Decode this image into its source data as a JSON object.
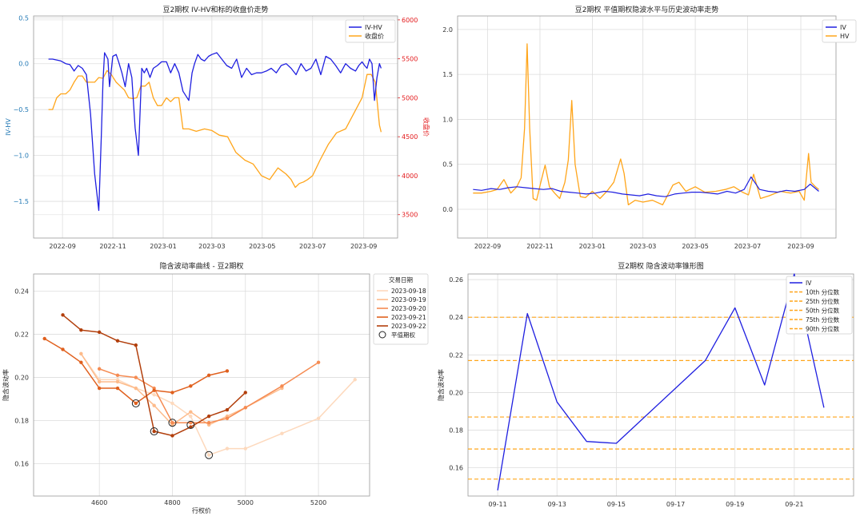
{
  "chart_data": [
    {
      "id": "p1",
      "type": "line",
      "title": "豆2期权 IV-HV和标的收盘价走势",
      "ylabel": "IV-HV",
      "y2label": "收盘价",
      "ylim": [
        -1.9,
        0.52
      ],
      "y2lim": [
        3200,
        6050
      ],
      "x_ticks": [
        "2022-09",
        "2022-11",
        "2023-01",
        "2023-03",
        "2023-05",
        "2023-07",
        "2023-09"
      ],
      "y_ticks": [
        0.5,
        0.0,
        -0.5,
        -1.0,
        -1.5
      ],
      "y_tick_labels": [
        "0.5",
        "0.0",
        "−0.5",
        "−1.0",
        "−1.5"
      ],
      "y2_ticks": [
        6000,
        5500,
        5000,
        4500,
        4000,
        3500
      ],
      "colors": {
        "iv_hv": "#1f1fe0",
        "close": "#ffa51a",
        "left_axis": "#1f77b4",
        "right_axis": "#e31a1c"
      },
      "legend": [
        "IV-HV",
        "收盘价"
      ],
      "legend_position": "top-right",
      "series": [
        {
          "name": "IV-HV",
          "axis": "left",
          "color": "#1f1fe0",
          "x": [
            "2022-08-15",
            "2022-08-20",
            "2022-08-25",
            "2022-08-30",
            "2022-09-05",
            "2022-09-10",
            "2022-09-15",
            "2022-09-20",
            "2022-09-25",
            "2022-09-30",
            "2022-10-05",
            "2022-10-10",
            "2022-10-15",
            "2022-10-18",
            "2022-10-20",
            "2022-10-22",
            "2022-10-26",
            "2022-10-28",
            "2022-11-01",
            "2022-11-05",
            "2022-11-08",
            "2022-11-12",
            "2022-11-16",
            "2022-11-20",
            "2022-11-24",
            "2022-11-28",
            "2022-12-02",
            "2022-12-06",
            "2022-12-09",
            "2022-12-12",
            "2022-12-16",
            "2022-12-20",
            "2022-12-25",
            "2022-12-30",
            "2023-01-05",
            "2023-01-10",
            "2023-01-15",
            "2023-01-20",
            "2023-01-25",
            "2023-02-01",
            "2023-02-05",
            "2023-02-08",
            "2023-02-12",
            "2023-02-16",
            "2023-02-20",
            "2023-02-25",
            "2023-03-01",
            "2023-03-07",
            "2023-03-13",
            "2023-03-19",
            "2023-03-25",
            "2023-03-31",
            "2023-04-06",
            "2023-04-12",
            "2023-04-18",
            "2023-04-24",
            "2023-04-30",
            "2023-05-06",
            "2023-05-12",
            "2023-05-18",
            "2023-05-24",
            "2023-05-30",
            "2023-06-05",
            "2023-06-11",
            "2023-06-17",
            "2023-06-23",
            "2023-06-29",
            "2023-07-05",
            "2023-07-11",
            "2023-07-17",
            "2023-07-23",
            "2023-07-29",
            "2023-08-04",
            "2023-08-10",
            "2023-08-16",
            "2023-08-22",
            "2023-08-26",
            "2023-08-30",
            "2023-09-02",
            "2023-09-05",
            "2023-09-08",
            "2023-09-11",
            "2023-09-14",
            "2023-09-17",
            "2023-09-20",
            "2023-09-22"
          ],
          "y": [
            0.05,
            0.05,
            0.04,
            0.03,
            0.0,
            -0.01,
            -0.08,
            -0.02,
            -0.05,
            -0.12,
            -0.55,
            -1.2,
            -1.6,
            -0.8,
            -0.2,
            0.12,
            0.05,
            -0.25,
            0.08,
            0.1,
            0.02,
            -0.1,
            -0.25,
            0.0,
            -0.15,
            -0.7,
            -1.0,
            -0.05,
            -0.1,
            -0.05,
            -0.15,
            -0.05,
            -0.02,
            0.02,
            0.02,
            -0.1,
            0.0,
            -0.1,
            -0.3,
            -0.4,
            -0.1,
            0.0,
            0.1,
            0.05,
            0.03,
            0.08,
            0.1,
            0.12,
            0.05,
            -0.02,
            -0.05,
            0.05,
            -0.15,
            -0.05,
            -0.12,
            -0.1,
            -0.1,
            -0.08,
            -0.05,
            -0.1,
            -0.02,
            0.0,
            -0.05,
            -0.12,
            0.0,
            -0.08,
            -0.05,
            0.05,
            -0.12,
            0.08,
            0.05,
            -0.02,
            -0.1,
            0.0,
            -0.05,
            -0.08,
            -0.02,
            0.02,
            -0.02,
            -0.05,
            0.05,
            0.0,
            -0.4,
            -0.15,
            0.0,
            -0.05
          ]
        },
        {
          "name": "收盘价",
          "axis": "right",
          "color": "#ffa51a",
          "x": [
            "2022-08-15",
            "2022-08-20",
            "2022-08-25",
            "2022-08-30",
            "2022-09-05",
            "2022-09-10",
            "2022-09-15",
            "2022-09-20",
            "2022-09-25",
            "2022-09-30",
            "2022-10-05",
            "2022-10-10",
            "2022-10-15",
            "2022-10-20",
            "2022-10-25",
            "2022-10-30",
            "2022-11-05",
            "2022-11-10",
            "2022-11-15",
            "2022-11-20",
            "2022-11-25",
            "2022-11-30",
            "2022-12-05",
            "2022-12-10",
            "2022-12-15",
            "2022-12-20",
            "2022-12-25",
            "2022-12-30",
            "2023-01-05",
            "2023-01-10",
            "2023-01-15",
            "2023-01-20",
            "2023-01-25",
            "2023-02-01",
            "2023-02-10",
            "2023-02-20",
            "2023-03-01",
            "2023-03-10",
            "2023-03-20",
            "2023-03-30",
            "2023-04-10",
            "2023-04-20",
            "2023-04-30",
            "2023-05-10",
            "2023-05-20",
            "2023-05-30",
            "2023-06-05",
            "2023-06-10",
            "2023-06-15",
            "2023-06-20",
            "2023-06-25",
            "2023-07-01",
            "2023-07-10",
            "2023-07-20",
            "2023-07-30",
            "2023-08-10",
            "2023-08-20",
            "2023-08-30",
            "2023-09-05",
            "2023-09-10",
            "2023-09-15",
            "2023-09-20",
            "2023-09-22"
          ],
          "y": [
            4850,
            4850,
            5000,
            5050,
            5050,
            5100,
            5200,
            5280,
            5280,
            5200,
            5200,
            5200,
            5260,
            5250,
            5350,
            5300,
            5200,
            5150,
            5100,
            5000,
            4990,
            5000,
            5150,
            5150,
            5200,
            5000,
            4900,
            4900,
            5000,
            4950,
            5000,
            5000,
            4600,
            4600,
            4570,
            4600,
            4580,
            4520,
            4500,
            4300,
            4200,
            4150,
            4000,
            3950,
            4100,
            4020,
            3950,
            3850,
            3900,
            3920,
            3950,
            4000,
            4200,
            4400,
            4550,
            4600,
            4800,
            5000,
            5300,
            5300,
            5200,
            4650,
            4560
          ]
        }
      ]
    },
    {
      "id": "p2",
      "type": "line",
      "title": "豆2期权 平值期权隐波水平与历史波动率走势",
      "ylim": [
        -0.32,
        2.15
      ],
      "x_ticks": [
        "2022-09",
        "2022-11",
        "2023-01",
        "2023-03",
        "2023-05",
        "2023-07",
        "2023-09"
      ],
      "y_ticks": [
        0.0,
        0.5,
        1.0,
        1.5,
        2.0
      ],
      "y_tick_labels": [
        "0.0",
        "0.5",
        "1.0",
        "1.5",
        "2.0"
      ],
      "legend": [
        "IV",
        "HV"
      ],
      "legend_position": "top-right",
      "series": [
        {
          "name": "IV",
          "color": "#1f1fe0",
          "x": [
            "2022-08-15",
            "2022-08-25",
            "2022-09-05",
            "2022-09-15",
            "2022-09-25",
            "2022-10-05",
            "2022-10-15",
            "2022-10-25",
            "2022-11-05",
            "2022-11-15",
            "2022-11-25",
            "2022-12-05",
            "2022-12-15",
            "2022-12-25",
            "2023-01-05",
            "2023-01-15",
            "2023-01-25",
            "2023-02-05",
            "2023-02-15",
            "2023-02-25",
            "2023-03-07",
            "2023-03-17",
            "2023-03-27",
            "2023-04-07",
            "2023-04-17",
            "2023-04-27",
            "2023-05-07",
            "2023-05-17",
            "2023-05-27",
            "2023-06-07",
            "2023-06-17",
            "2023-06-27",
            "2023-07-05",
            "2023-07-15",
            "2023-07-25",
            "2023-08-05",
            "2023-08-15",
            "2023-08-25",
            "2023-09-05",
            "2023-09-12",
            "2023-09-22"
          ],
          "y": [
            0.22,
            0.21,
            0.23,
            0.22,
            0.24,
            0.25,
            0.24,
            0.23,
            0.22,
            0.23,
            0.2,
            0.19,
            0.18,
            0.17,
            0.18,
            0.2,
            0.19,
            0.17,
            0.16,
            0.15,
            0.17,
            0.15,
            0.14,
            0.17,
            0.18,
            0.19,
            0.19,
            0.18,
            0.17,
            0.2,
            0.18,
            0.22,
            0.36,
            0.22,
            0.2,
            0.19,
            0.21,
            0.2,
            0.22,
            0.28,
            0.2
          ]
        },
        {
          "name": "HV",
          "color": "#ffa51a",
          "x": [
            "2022-08-15",
            "2022-08-25",
            "2022-09-05",
            "2022-09-12",
            "2022-09-20",
            "2022-09-28",
            "2022-10-05",
            "2022-10-10",
            "2022-10-14",
            "2022-10-17",
            "2022-10-20",
            "2022-10-24",
            "2022-10-28",
            "2022-11-02",
            "2022-11-07",
            "2022-11-12",
            "2022-11-18",
            "2022-11-24",
            "2022-11-30",
            "2022-12-04",
            "2022-12-08",
            "2022-12-12",
            "2022-12-18",
            "2022-12-24",
            "2023-01-01",
            "2023-01-10",
            "2023-01-18",
            "2023-01-26",
            "2023-02-03",
            "2023-02-07",
            "2023-02-12",
            "2023-02-20",
            "2023-03-01",
            "2023-03-12",
            "2023-03-24",
            "2023-04-05",
            "2023-04-12",
            "2023-04-20",
            "2023-05-01",
            "2023-05-12",
            "2023-05-25",
            "2023-06-05",
            "2023-06-15",
            "2023-06-25",
            "2023-07-02",
            "2023-07-08",
            "2023-07-16",
            "2023-07-26",
            "2023-08-08",
            "2023-08-20",
            "2023-08-30",
            "2023-09-05",
            "2023-09-10",
            "2023-09-13",
            "2023-09-18",
            "2023-09-22"
          ],
          "y": [
            0.18,
            0.18,
            0.2,
            0.22,
            0.33,
            0.18,
            0.25,
            0.35,
            0.9,
            1.84,
            0.9,
            0.12,
            0.1,
            0.3,
            0.49,
            0.25,
            0.18,
            0.12,
            0.3,
            0.55,
            1.21,
            0.5,
            0.14,
            0.13,
            0.2,
            0.12,
            0.2,
            0.3,
            0.56,
            0.4,
            0.05,
            0.1,
            0.08,
            0.1,
            0.05,
            0.27,
            0.3,
            0.2,
            0.25,
            0.19,
            0.2,
            0.22,
            0.25,
            0.19,
            0.16,
            0.39,
            0.12,
            0.15,
            0.2,
            0.18,
            0.2,
            0.1,
            0.62,
            0.3,
            0.25,
            0.22
          ]
        }
      ]
    },
    {
      "id": "p3",
      "type": "line",
      "title": "隐含波动率曲线 - 豆2期权",
      "xlabel": "行权价",
      "ylabel": "隐含波动率",
      "xlim": [
        4420,
        5340
      ],
      "ylim": [
        0.145,
        0.248
      ],
      "x_ticks": [
        4600,
        4800,
        5000,
        5200
      ],
      "y_ticks": [
        0.16,
        0.18,
        0.2,
        0.22,
        0.24
      ],
      "y_tick_labels": [
        "0.16",
        "0.18",
        "0.20",
        "0.22",
        "0.24"
      ],
      "legend_title": "交易日期",
      "legend_position": "outside-right",
      "atm_label": "平值期权",
      "series": [
        {
          "name": "2023-09-18",
          "color": "#fdd9bd",
          "x": [
            4550,
            4600,
            4650,
            4700,
            4750,
            4800,
            4850,
            4900,
            4950,
            5000,
            5100,
            5200,
            5300
          ],
          "y": [
            0.211,
            0.199,
            0.199,
            0.195,
            0.192,
            0.188,
            0.182,
            0.164,
            0.167,
            0.167,
            0.174,
            0.181,
            0.199
          ]
        },
        {
          "name": "2023-09-19",
          "color": "#fdbb8b",
          "x": [
            4550,
            4600,
            4650,
            4700,
            4750,
            4800,
            4850,
            4900,
            4950,
            5000,
            5100
          ],
          "y": [
            0.211,
            0.198,
            0.198,
            0.195,
            0.187,
            0.178,
            0.184,
            0.178,
            0.182,
            0.186,
            0.195
          ]
        },
        {
          "name": "2023-09-20",
          "color": "#f58b52",
          "x": [
            4600,
            4650,
            4700,
            4750,
            4800,
            4850,
            4900,
            4950,
            5000,
            5100,
            5200
          ],
          "y": [
            0.204,
            0.201,
            0.2,
            0.195,
            0.179,
            0.179,
            0.179,
            0.181,
            0.186,
            0.196,
            0.207
          ]
        },
        {
          "name": "2023-09-21",
          "color": "#e0601e",
          "x": [
            4450,
            4500,
            4550,
            4600,
            4650,
            4700,
            4750,
            4800,
            4850,
            4900,
            4950
          ],
          "y": [
            0.218,
            0.213,
            0.207,
            0.195,
            0.195,
            0.188,
            0.194,
            0.193,
            0.196,
            0.201,
            0.203
          ]
        },
        {
          "name": "2023-09-22",
          "color": "#b23f0c",
          "x": [
            4500,
            4550,
            4600,
            4650,
            4700,
            4750,
            4800,
            4850,
            4900,
            4950,
            5000
          ],
          "y": [
            0.229,
            0.222,
            0.221,
            0.217,
            0.215,
            0.175,
            0.173,
            0.177,
            0.182,
            0.185,
            0.193
          ]
        }
      ],
      "atm_points": {
        "x": [
          4900,
          4850,
          4800,
          4750,
          4700
        ],
        "y": [
          0.164,
          0.178,
          0.179,
          0.175,
          0.188
        ]
      }
    },
    {
      "id": "p4",
      "type": "line",
      "title": "豆2期权 隐含波动率锥形图",
      "ylabel": "隐含波动率",
      "xlim": [
        "2023-09-10",
        "2023-09-23"
      ],
      "ylim": [
        0.145,
        0.263
      ],
      "x_ticks": [
        "09-11",
        "09-13",
        "09-15",
        "09-17",
        "09-19",
        "09-21"
      ],
      "y_ticks": [
        0.16,
        0.18,
        0.2,
        0.22,
        0.24,
        0.26
      ],
      "y_tick_labels": [
        "0.16",
        "0.18",
        "0.20",
        "0.22",
        "0.24",
        "0.26"
      ],
      "legend": [
        "IV",
        "10th 分位数",
        "25th 分位数",
        "50th 分位数",
        "75th 分位数",
        "90th 分位数"
      ],
      "legend_position": "top-right",
      "series": [
        {
          "name": "IV",
          "color": "#1f1fe0",
          "x": [
            "2023-09-11",
            "2023-09-12",
            "2023-09-13",
            "2023-09-14",
            "2023-09-15",
            "2023-09-18",
            "2023-09-19",
            "2023-09-20",
            "2023-09-21",
            "2023-09-22"
          ],
          "y": [
            0.148,
            0.242,
            0.195,
            0.174,
            0.173,
            0.217,
            0.245,
            0.204,
            0.263,
            0.192
          ]
        }
      ],
      "percentiles": {
        "colors": [
          "#ffa51a",
          "#ffa51a",
          "#ffa51a",
          "#ffa51a",
          "#ffa51a"
        ],
        "values": [
          0.154,
          0.17,
          0.187,
          0.217,
          0.24
        ]
      }
    }
  ]
}
